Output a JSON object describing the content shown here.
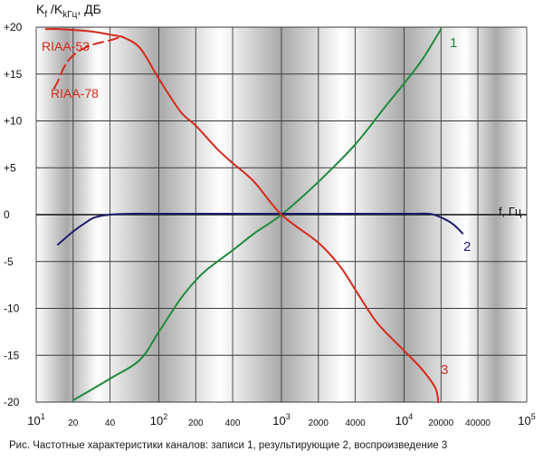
{
  "chart_data": {
    "type": "line",
    "xscale": "log",
    "xlim": [
      10,
      100000
    ],
    "ylim": [
      -20,
      20
    ],
    "ylabel_parts": {
      "main1": "K",
      "sub1": "f",
      "sep": " /K",
      "sub2": "kГц",
      "unit": ", ДБ"
    },
    "xlabel": "f, Гц",
    "x_ticks": [
      {
        "value": 10,
        "base": "10",
        "exp": "1"
      },
      {
        "value": 20,
        "label": "20"
      },
      {
        "value": 40,
        "label": "40"
      },
      {
        "value": 100,
        "base": "10",
        "exp": "2"
      },
      {
        "value": 200,
        "label": "200"
      },
      {
        "value": 400,
        "label": "400"
      },
      {
        "value": 1000,
        "base": "10",
        "exp": "3"
      },
      {
        "value": 2000,
        "label": "2000"
      },
      {
        "value": 4000,
        "label": "4000"
      },
      {
        "value": 10000,
        "base": "10",
        "exp": "4"
      },
      {
        "value": 20000,
        "label": "20000"
      },
      {
        "value": 40000,
        "label": "40000"
      },
      {
        "value": 100000,
        "base": "10",
        "exp": "5"
      }
    ],
    "y_ticks": [
      {
        "value": 20,
        "label": "+20"
      },
      {
        "value": 15,
        "label": "+15"
      },
      {
        "value": 10,
        "label": "+10"
      },
      {
        "value": 5,
        "label": "+5"
      },
      {
        "value": 0,
        "label": "0"
      },
      {
        "value": -5,
        "label": "-5"
      },
      {
        "value": -10,
        "label": "-10"
      },
      {
        "value": -15,
        "label": "-15"
      },
      {
        "value": -20,
        "label": "-20"
      }
    ],
    "series": [
      {
        "name": "1",
        "color": "#1e8a3c",
        "dashed": false,
        "x": [
          20,
          40,
          70,
          100,
          150,
          200,
          250,
          400,
          600,
          1000,
          2000,
          4000,
          7000,
          10000,
          14000,
          20000
        ],
        "y": [
          -19.8,
          -17.5,
          -15.5,
          -12.5,
          -9.0,
          -7.0,
          -5.8,
          -3.8,
          -2.0,
          0,
          3.5,
          7.5,
          11.5,
          14.0,
          16.5,
          19.8
        ]
      },
      {
        "name": "2",
        "color": "#1c1c6e",
        "dashed": false,
        "x": [
          15,
          20,
          25,
          30,
          40,
          60,
          100,
          1000,
          10000,
          16000,
          20000,
          25000,
          30000
        ],
        "y": [
          -3.2,
          -1.8,
          -0.9,
          -0.3,
          0,
          0.1,
          0.1,
          0.1,
          0.1,
          0.1,
          -0.3,
          -1.0,
          -2.0
        ]
      },
      {
        "name": "3",
        "color": "#d42a1c",
        "dashed": false,
        "x": [
          50,
          70,
          100,
          150,
          200,
          300,
          400,
          600,
          1000,
          2000,
          3000,
          4000,
          6000,
          10000,
          14000,
          18000,
          19000
        ],
        "y": [
          19.0,
          17.8,
          14.5,
          11.0,
          9.5,
          7.0,
          5.5,
          3.5,
          0,
          -3.0,
          -5.5,
          -8.0,
          -11.5,
          -14.5,
          -16.5,
          -18.5,
          -20.0
        ]
      },
      {
        "name": "RIAA-53",
        "color": "#d42a1c",
        "dashed": false,
        "x": [
          12,
          15,
          20,
          30,
          40,
          50
        ],
        "y": [
          19.8,
          19.8,
          19.7,
          19.5,
          19.2,
          19.0
        ]
      },
      {
        "name": "RIAA-78",
        "color": "#d42a1c",
        "dashed": true,
        "x": [
          14,
          15,
          17,
          20,
          25,
          30,
          40,
          50
        ],
        "y": [
          13.5,
          14.2,
          15.8,
          17.0,
          17.8,
          18.2,
          18.6,
          19.0
        ]
      }
    ],
    "curve_labels": [
      {
        "series": "1",
        "text": "1"
      },
      {
        "series": "2",
        "text": "2"
      },
      {
        "series": "3",
        "text": "3"
      },
      {
        "series": "RIAA-53",
        "text": "RIAA-53"
      },
      {
        "series": "RIAA-78",
        "text": "RIAA-78"
      }
    ],
    "grid": true,
    "decade_bands": true
  },
  "caption": "Рис. Частотные характеристики каналов: записи 1, результирующие 2, воспроизведение 3"
}
